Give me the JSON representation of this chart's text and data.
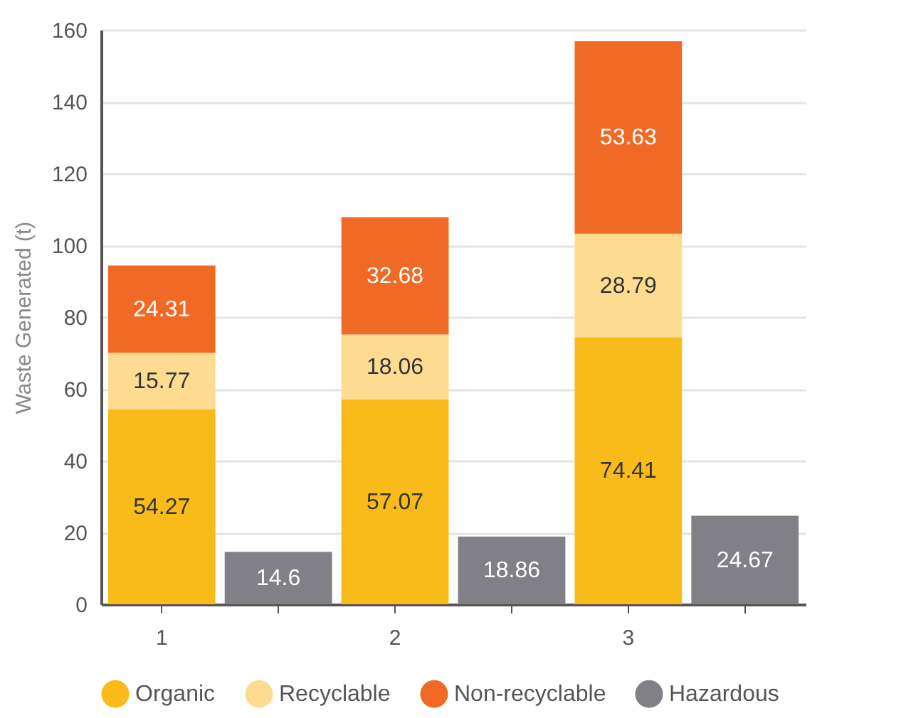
{
  "chart_data": {
    "type": "bar",
    "stacked": true,
    "ylabel": "Waste Generated (t)",
    "categories": [
      "1",
      null,
      "2",
      null,
      "3",
      null
    ],
    "series": [
      {
        "name": "Organic",
        "color": "#f9bb1a",
        "values": [
          54.27,
          null,
          57.07,
          null,
          74.41,
          null
        ]
      },
      {
        "name": "Recyclable",
        "color": "#fddc92",
        "values": [
          15.77,
          null,
          18.06,
          null,
          28.79,
          null
        ]
      },
      {
        "name": "Non-recyclable",
        "color": "#f06a25",
        "values": [
          24.31,
          null,
          32.68,
          null,
          53.63,
          null
        ]
      },
      {
        "name": "Hazardous",
        "color": "#808086",
        "values": [
          null,
          14.6,
          null,
          18.86,
          null,
          24.67
        ]
      }
    ],
    "ylim": [
      0,
      160
    ],
    "yticks": [
      0,
      20,
      40,
      60,
      80,
      100,
      120,
      140,
      160
    ],
    "grid": "y",
    "legend": "bottom",
    "data_labels": true
  }
}
